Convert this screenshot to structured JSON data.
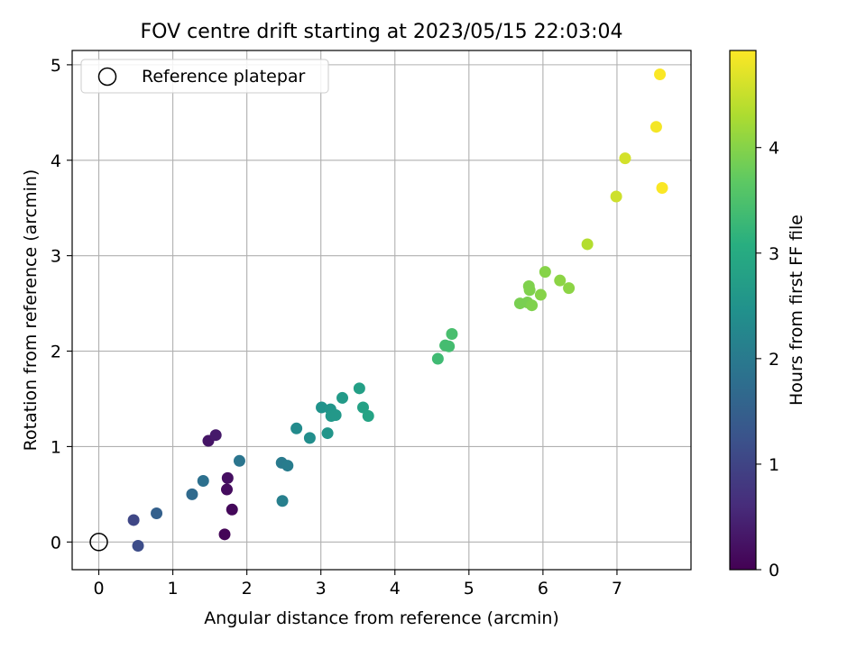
{
  "chart_data": {
    "type": "scatter",
    "title": "FOV centre drift starting at 2023/05/15 22:03:04",
    "xlabel": "Angular distance from reference (arcmin)",
    "ylabel": "Rotation from reference (arcmin)",
    "xlim": [
      -0.36,
      8.0
    ],
    "ylim": [
      -0.29,
      5.15
    ],
    "xticks": [
      0,
      1,
      2,
      3,
      4,
      5,
      6,
      7
    ],
    "yticks": [
      0,
      1,
      2,
      3,
      4,
      5
    ],
    "grid": true,
    "legend": {
      "location": "upper-left",
      "entries": [
        "Reference platepar"
      ]
    },
    "reference_point": {
      "x": 0,
      "y": 0,
      "label": "Reference platepar"
    },
    "colorbar": {
      "label": "Hours from first FF file",
      "colormap": "viridis",
      "range": [
        0,
        4.92
      ],
      "ticks": [
        0,
        1,
        2,
        3,
        4
      ]
    },
    "points": [
      {
        "x": 1.7,
        "y": 0.08,
        "c": 0.05
      },
      {
        "x": 1.8,
        "y": 0.34,
        "c": 0.1
      },
      {
        "x": 1.73,
        "y": 0.55,
        "c": 0.15
      },
      {
        "x": 1.74,
        "y": 0.67,
        "c": 0.2
      },
      {
        "x": 1.48,
        "y": 1.06,
        "c": 0.28
      },
      {
        "x": 1.58,
        "y": 1.12,
        "c": 0.35
      },
      {
        "x": 0.47,
        "y": 0.23,
        "c": 1.05
      },
      {
        "x": 0.53,
        "y": -0.04,
        "c": 1.15
      },
      {
        "x": 0.78,
        "y": 0.3,
        "c": 1.5
      },
      {
        "x": 1.26,
        "y": 0.5,
        "c": 1.7
      },
      {
        "x": 1.41,
        "y": 0.64,
        "c": 1.8
      },
      {
        "x": 1.9,
        "y": 0.85,
        "c": 1.9
      },
      {
        "x": 2.47,
        "y": 0.83,
        "c": 2.0
      },
      {
        "x": 2.55,
        "y": 0.8,
        "c": 2.05
      },
      {
        "x": 2.48,
        "y": 0.43,
        "c": 2.1
      },
      {
        "x": 2.67,
        "y": 1.19,
        "c": 2.35
      },
      {
        "x": 2.85,
        "y": 1.09,
        "c": 2.4
      },
      {
        "x": 3.01,
        "y": 1.41,
        "c": 2.5
      },
      {
        "x": 3.09,
        "y": 1.14,
        "c": 2.55
      },
      {
        "x": 3.13,
        "y": 1.39,
        "c": 2.55
      },
      {
        "x": 3.14,
        "y": 1.32,
        "c": 2.6
      },
      {
        "x": 3.2,
        "y": 1.33,
        "c": 2.6
      },
      {
        "x": 3.29,
        "y": 1.51,
        "c": 2.65
      },
      {
        "x": 3.52,
        "y": 1.61,
        "c": 2.75
      },
      {
        "x": 3.57,
        "y": 1.41,
        "c": 2.8
      },
      {
        "x": 3.64,
        "y": 1.32,
        "c": 2.85
      },
      {
        "x": 4.58,
        "y": 1.92,
        "c": 3.35
      },
      {
        "x": 4.68,
        "y": 2.06,
        "c": 3.4
      },
      {
        "x": 4.73,
        "y": 2.05,
        "c": 3.4
      },
      {
        "x": 4.77,
        "y": 2.18,
        "c": 3.45
      },
      {
        "x": 5.69,
        "y": 2.5,
        "c": 3.9
      },
      {
        "x": 5.79,
        "y": 2.51,
        "c": 3.9
      },
      {
        "x": 5.81,
        "y": 2.68,
        "c": 3.95
      },
      {
        "x": 5.82,
        "y": 2.64,
        "c": 3.95
      },
      {
        "x": 5.85,
        "y": 2.48,
        "c": 3.95
      },
      {
        "x": 5.97,
        "y": 2.59,
        "c": 4.0
      },
      {
        "x": 6.03,
        "y": 2.83,
        "c": 4.0
      },
      {
        "x": 6.23,
        "y": 2.74,
        "c": 4.05
      },
      {
        "x": 6.35,
        "y": 2.66,
        "c": 4.05
      },
      {
        "x": 6.6,
        "y": 3.12,
        "c": 4.35
      },
      {
        "x": 6.99,
        "y": 3.62,
        "c": 4.55
      },
      {
        "x": 7.11,
        "y": 4.02,
        "c": 4.6
      },
      {
        "x": 7.53,
        "y": 4.35,
        "c": 4.85
      },
      {
        "x": 7.58,
        "y": 4.9,
        "c": 4.9
      },
      {
        "x": 7.61,
        "y": 3.71,
        "c": 4.9
      }
    ]
  }
}
